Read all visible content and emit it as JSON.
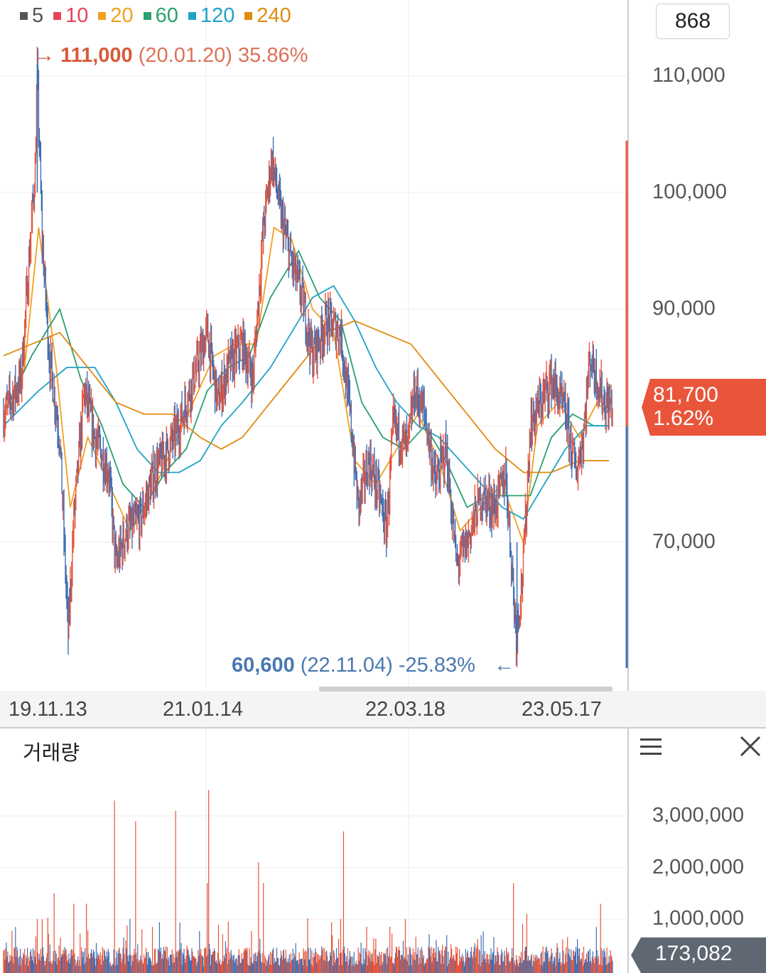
{
  "chart_data": [
    {
      "type": "line",
      "legend": [
        {
          "label": "5",
          "color": "#555555"
        },
        {
          "label": "10",
          "color": "#e8435a"
        },
        {
          "label": "20",
          "color": "#f0a020"
        },
        {
          "label": "60",
          "color": "#2aa070"
        },
        {
          "label": "120",
          "color": "#1fa3c8"
        },
        {
          "label": "240",
          "color": "#e08a10"
        }
      ],
      "period_count": "868",
      "ylim": [
        58000,
        114000
      ],
      "yticks": [
        {
          "value": 70000,
          "label": "70,000"
        },
        {
          "value": 90000,
          "label": "90,000"
        },
        {
          "value": 100000,
          "label": "100,000"
        },
        {
          "value": 110000,
          "label": "110,000"
        }
      ],
      "xticks": [
        "19.11.13",
        "21.01.14",
        "22.03.18",
        "23.05.17"
      ],
      "high_annotation": {
        "arrow": "→",
        "value": "111,000",
        "detail": "(20.01.20) 35.86%"
      },
      "low_annotation": {
        "value": "60,600",
        "detail": "(22.11.04) -25.83%",
        "arrow": "←"
      },
      "current_price": {
        "value": "81,700",
        "change": "1.62%",
        "box_color": "#e8553a"
      },
      "price_series_colors": {
        "up": "#e8553a",
        "down": "#3f6fb5"
      },
      "price_key_points": [
        [
          0,
          81000
        ],
        [
          25,
          84000
        ],
        [
          45,
          102000
        ],
        [
          48,
          110000
        ],
        [
          55,
          96000
        ],
        [
          65,
          86000
        ],
        [
          80,
          79000
        ],
        [
          92,
          62000
        ],
        [
          100,
          72000
        ],
        [
          115,
          83000
        ],
        [
          130,
          79000
        ],
        [
          150,
          76000
        ],
        [
          160,
          68000
        ],
        [
          175,
          71000
        ],
        [
          195,
          72000
        ],
        [
          215,
          76000
        ],
        [
          235,
          78000
        ],
        [
          250,
          80000
        ],
        [
          270,
          84000
        ],
        [
          290,
          88000
        ],
        [
          305,
          82000
        ],
        [
          320,
          85000
        ],
        [
          340,
          87000
        ],
        [
          355,
          84000
        ],
        [
          370,
          97000
        ],
        [
          382,
          103000
        ],
        [
          395,
          98000
        ],
        [
          410,
          94000
        ],
        [
          425,
          91000
        ],
        [
          440,
          86000
        ],
        [
          460,
          89000
        ],
        [
          480,
          88000
        ],
        [
          495,
          80000
        ],
        [
          505,
          73000
        ],
        [
          520,
          77000
        ],
        [
          535,
          74000
        ],
        [
          545,
          71000
        ],
        [
          555,
          80000
        ],
        [
          575,
          78000
        ],
        [
          585,
          83000
        ],
        [
          600,
          81000
        ],
        [
          615,
          75000
        ],
        [
          630,
          78000
        ],
        [
          645,
          68000
        ],
        [
          660,
          70000
        ],
        [
          680,
          74000
        ],
        [
          700,
          73000
        ],
        [
          715,
          76000
        ],
        [
          730,
          62000
        ],
        [
          740,
          68000
        ],
        [
          750,
          80000
        ],
        [
          765,
          82000
        ],
        [
          780,
          84000
        ],
        [
          800,
          81000
        ],
        [
          815,
          76000
        ],
        [
          825,
          79000
        ],
        [
          835,
          86000
        ],
        [
          845,
          84000
        ],
        [
          855,
          82000
        ],
        [
          862,
          81700
        ]
      ],
      "moving_averages": [
        {
          "name": "20",
          "color": "#f0a020",
          "points": [
            [
              0,
              81000
            ],
            [
              30,
              85000
            ],
            [
              50,
              97000
            ],
            [
              75,
              85000
            ],
            [
              95,
              73000
            ],
            [
              120,
              79000
            ],
            [
              150,
              75000
            ],
            [
              180,
              71000
            ],
            [
              210,
              74000
            ],
            [
              240,
              78000
            ],
            [
              270,
              82000
            ],
            [
              300,
              86000
            ],
            [
              330,
              87000
            ],
            [
              360,
              87000
            ],
            [
              385,
              97000
            ],
            [
              410,
              96000
            ],
            [
              440,
              90000
            ],
            [
              470,
              88000
            ],
            [
              500,
              77000
            ],
            [
              530,
              75000
            ],
            [
              560,
              78000
            ],
            [
              590,
              81000
            ],
            [
              620,
              77000
            ],
            [
              650,
              71000
            ],
            [
              680,
              73000
            ],
            [
              710,
              75000
            ],
            [
              740,
              70000
            ],
            [
              760,
              80000
            ],
            [
              790,
              82000
            ],
            [
              820,
              79000
            ],
            [
              845,
              82000
            ],
            [
              862,
              81000
            ]
          ]
        },
        {
          "name": "60",
          "color": "#2aa070",
          "points": [
            [
              0,
              81000
            ],
            [
              40,
              86000
            ],
            [
              80,
              90000
            ],
            [
              110,
              84000
            ],
            [
              140,
              80000
            ],
            [
              170,
              75000
            ],
            [
              200,
              73000
            ],
            [
              230,
              76000
            ],
            [
              260,
              78000
            ],
            [
              290,
              83000
            ],
            [
              320,
              85000
            ],
            [
              350,
              86000
            ],
            [
              380,
              91000
            ],
            [
              420,
              95000
            ],
            [
              450,
              91000
            ],
            [
              480,
              89000
            ],
            [
              510,
              82000
            ],
            [
              540,
              79000
            ],
            [
              570,
              78000
            ],
            [
              600,
              80000
            ],
            [
              630,
              77000
            ],
            [
              660,
              73000
            ],
            [
              690,
              74000
            ],
            [
              720,
              74000
            ],
            [
              750,
              74000
            ],
            [
              780,
              79000
            ],
            [
              810,
              81000
            ],
            [
              840,
              80000
            ],
            [
              862,
              80000
            ]
          ]
        },
        {
          "name": "120",
          "color": "#1fa3c8",
          "points": [
            [
              0,
              80000
            ],
            [
              50,
              83000
            ],
            [
              90,
              85000
            ],
            [
              130,
              85000
            ],
            [
              160,
              82000
            ],
            [
              190,
              78000
            ],
            [
              220,
              76000
            ],
            [
              250,
              76000
            ],
            [
              280,
              77000
            ],
            [
              310,
              80000
            ],
            [
              340,
              82000
            ],
            [
              380,
              85000
            ],
            [
              410,
              88000
            ],
            [
              440,
              91000
            ],
            [
              470,
              92000
            ],
            [
              500,
              89000
            ],
            [
              530,
              85000
            ],
            [
              560,
              82000
            ],
            [
              590,
              80000
            ],
            [
              620,
              79000
            ],
            [
              650,
              77000
            ],
            [
              680,
              75000
            ],
            [
              710,
              73000
            ],
            [
              740,
              72000
            ],
            [
              770,
              75000
            ],
            [
              800,
              78000
            ],
            [
              830,
              80000
            ],
            [
              862,
              80000
            ]
          ]
        },
        {
          "name": "240",
          "color": "#e08a10",
          "points": [
            [
              0,
              86000
            ],
            [
              40,
              87000
            ],
            [
              80,
              88000
            ],
            [
              120,
              85000
            ],
            [
              160,
              82000
            ],
            [
              200,
              81000
            ],
            [
              240,
              81000
            ],
            [
              280,
              79000
            ],
            [
              310,
              78000
            ],
            [
              340,
              79000
            ],
            [
              380,
              82000
            ],
            [
              420,
              85000
            ],
            [
              460,
              88000
            ],
            [
              500,
              89000
            ],
            [
              540,
              88000
            ],
            [
              580,
              87000
            ],
            [
              620,
              84000
            ],
            [
              660,
              81000
            ],
            [
              700,
              78000
            ],
            [
              740,
              76000
            ],
            [
              780,
              76000
            ],
            [
              820,
              77000
            ],
            [
              862,
              77000
            ]
          ]
        }
      ]
    },
    {
      "type": "bar",
      "title": "거래량",
      "ylim": [
        0,
        3700000
      ],
      "yticks": [
        {
          "value": 1000000,
          "label": "1,000,000"
        },
        {
          "value": 2000000,
          "label": "2,000,000"
        },
        {
          "value": 3000000,
          "label": "3,000,000"
        }
      ],
      "current_volume": "173,082",
      "bar_colors": {
        "up": "#e8553a",
        "down": "#3f6fb5"
      },
      "baseline_level": 350000,
      "spikes": [
        [
          48,
          1000000
        ],
        [
          55,
          1000000
        ],
        [
          72,
          1500000
        ],
        [
          100,
          1300000
        ],
        [
          118,
          1300000
        ],
        [
          158,
          3300000
        ],
        [
          188,
          2900000
        ],
        [
          245,
          3100000
        ],
        [
          292,
          3500000
        ],
        [
          290,
          1700000
        ],
        [
          363,
          2100000
        ],
        [
          370,
          1700000
        ],
        [
          484,
          2700000
        ],
        [
          572,
          1000000
        ],
        [
          726,
          1700000
        ],
        [
          745,
          1100000
        ],
        [
          850,
          1300000
        ]
      ],
      "total_bars": 868
    }
  ]
}
